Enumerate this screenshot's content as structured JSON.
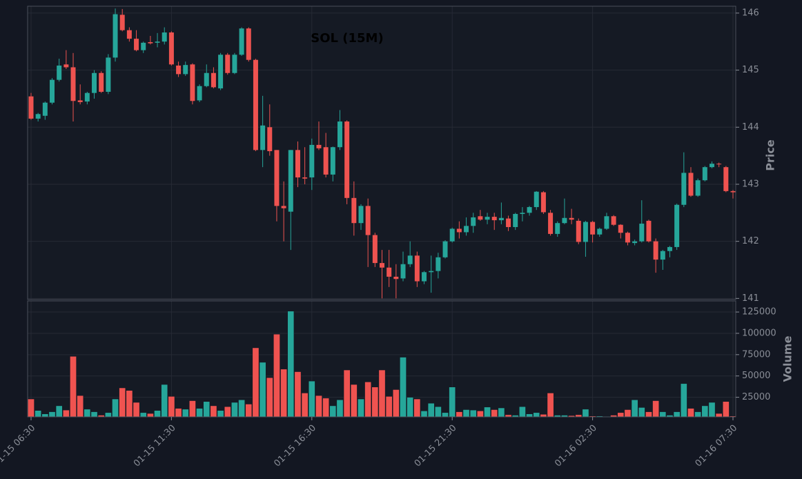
{
  "chart_data": {
    "type": "candlestick",
    "title": "SOL (15M)",
    "y_label": "Price",
    "up_color": "#26a69a",
    "down_color": "#ef5350",
    "grid": true,
    "categories": [
      "01-15 06:30",
      null,
      null,
      null,
      null,
      null,
      null,
      null,
      null,
      null,
      null,
      null,
      null,
      null,
      null,
      null,
      null,
      null,
      null,
      null,
      "01-15 11:30",
      null,
      null,
      null,
      null,
      null,
      null,
      null,
      null,
      null,
      null,
      null,
      null,
      null,
      null,
      null,
      null,
      null,
      null,
      null,
      "01-15 16:30",
      null,
      null,
      null,
      null,
      null,
      null,
      null,
      null,
      null,
      null,
      null,
      null,
      null,
      null,
      null,
      null,
      null,
      null,
      null,
      "01-15 21:30",
      null,
      null,
      null,
      null,
      null,
      null,
      null,
      null,
      null,
      null,
      null,
      null,
      null,
      null,
      null,
      null,
      null,
      null,
      null,
      "01-16 02:30",
      null,
      null,
      null,
      null,
      null,
      null,
      null,
      null,
      null,
      null,
      null,
      null,
      null,
      null,
      null,
      null,
      null,
      null,
      null,
      "01-16 07:30"
    ],
    "open": [
      144.54,
      144.15,
      144.2,
      144.43,
      144.83,
      145.1,
      145.05,
      144.47,
      144.45,
      144.6,
      144.95,
      144.62,
      145.22,
      145.97,
      145.7,
      145.55,
      145.35,
      145.49,
      145.48,
      145.5,
      145.66,
      145.08,
      144.93,
      145.1,
      144.47,
      144.72,
      144.95,
      144.68,
      145.27,
      144.95,
      145.27,
      145.73,
      145.18,
      143.6,
      144.0,
      143.6,
      142.62,
      142.52,
      143.6,
      143.12,
      143.12,
      143.69,
      143.65,
      143.17,
      143.65,
      144.1,
      142.76,
      142.32,
      142.62,
      142.11,
      141.62,
      141.54,
      141.38,
      141.35,
      141.6,
      141.75,
      141.3,
      141.46,
      141.48,
      141.72,
      142.0,
      142.22,
      142.16,
      142.27,
      142.44,
      142.38,
      142.43,
      142.37,
      142.4,
      142.25,
      142.48,
      142.5,
      142.6,
      142.86,
      142.5,
      142.13,
      142.32,
      142.41,
      142.36,
      141.99,
      142.34,
      142.12,
      142.22,
      142.44,
      142.29,
      142.15,
      141.97,
      142.0,
      142.36,
      142.0,
      141.68,
      141.83,
      141.9,
      142.64,
      143.2,
      142.8,
      143.07,
      143.3,
      143.36,
      143.3,
      142.88
    ],
    "high": [
      144.6,
      144.25,
      144.45,
      144.86,
      145.2,
      145.35,
      145.3,
      144.75,
      144.62,
      145.0,
      144.98,
      145.28,
      146.08,
      146.07,
      145.75,
      145.7,
      145.5,
      145.6,
      145.65,
      145.75,
      145.68,
      145.15,
      145.15,
      145.12,
      144.75,
      145.1,
      145.05,
      145.3,
      145.3,
      145.3,
      145.75,
      145.75,
      145.2,
      144.55,
      144.4,
      143.6,
      143.05,
      143.6,
      143.75,
      143.65,
      143.8,
      144.1,
      143.9,
      143.66,
      144.3,
      144.12,
      143.05,
      142.65,
      142.75,
      142.15,
      141.85,
      141.85,
      141.6,
      141.82,
      142.0,
      141.82,
      141.48,
      141.75,
      141.8,
      142.02,
      142.24,
      142.35,
      142.42,
      142.5,
      142.55,
      142.5,
      142.5,
      142.68,
      142.45,
      142.5,
      142.6,
      142.62,
      142.88,
      142.88,
      142.55,
      142.35,
      142.75,
      142.57,
      142.4,
      142.36,
      142.36,
      142.24,
      142.5,
      142.46,
      142.3,
      142.17,
      142.03,
      142.72,
      142.38,
      142.05,
      141.85,
      141.92,
      142.66,
      143.56,
      143.3,
      143.1,
      143.32,
      143.4,
      143.38,
      143.32,
      142.9
    ],
    "low": [
      144.13,
      144.1,
      144.13,
      144.4,
      144.8,
      145.02,
      144.1,
      144.4,
      144.4,
      144.5,
      144.6,
      144.58,
      145.15,
      145.68,
      145.5,
      145.33,
      145.3,
      145.45,
      145.4,
      145.45,
      145.08,
      144.88,
      144.9,
      144.4,
      144.44,
      144.7,
      144.68,
      144.65,
      144.92,
      144.93,
      145.25,
      145.15,
      143.58,
      143.3,
      143.5,
      142.35,
      142.0,
      141.85,
      142.95,
      143.0,
      142.9,
      143.6,
      143.12,
      143.05,
      143.6,
      142.65,
      142.1,
      142.2,
      141.55,
      141.55,
      141.0,
      141.2,
      141.0,
      141.3,
      141.55,
      141.2,
      141.25,
      141.1,
      141.35,
      141.7,
      141.98,
      142.05,
      142.1,
      142.15,
      142.36,
      142.3,
      142.2,
      142.3,
      142.18,
      142.2,
      142.35,
      142.45,
      142.55,
      142.48,
      142.1,
      142.08,
      142.3,
      142.3,
      141.95,
      141.73,
      141.98,
      142.08,
      142.2,
      142.27,
      142.05,
      141.93,
      141.93,
      141.98,
      141.98,
      141.45,
      141.5,
      141.72,
      141.85,
      142.6,
      142.78,
      142.78,
      143.05,
      143.28,
      143.3,
      142.86,
      142.75
    ],
    "close": [
      144.15,
      144.23,
      144.43,
      144.83,
      145.08,
      145.05,
      144.46,
      144.44,
      144.6,
      144.95,
      144.62,
      145.22,
      145.98,
      145.7,
      145.55,
      145.35,
      145.48,
      145.47,
      145.5,
      145.66,
      145.1,
      144.93,
      145.09,
      144.46,
      144.72,
      144.95,
      144.7,
      145.27,
      144.95,
      145.27,
      145.73,
      145.18,
      143.6,
      144.03,
      143.58,
      142.62,
      142.58,
      143.6,
      143.12,
      143.1,
      143.69,
      143.63,
      143.17,
      143.65,
      144.1,
      142.76,
      142.32,
      142.62,
      142.11,
      141.62,
      141.54,
      141.38,
      141.34,
      141.6,
      141.75,
      141.3,
      141.46,
      141.48,
      141.72,
      142.0,
      142.22,
      142.16,
      142.27,
      142.42,
      142.38,
      142.43,
      142.37,
      142.41,
      142.25,
      142.48,
      142.5,
      142.6,
      142.87,
      142.51,
      142.13,
      142.32,
      142.41,
      142.38,
      141.99,
      142.34,
      142.12,
      142.22,
      142.44,
      142.29,
      142.15,
      141.98,
      142.0,
      142.31,
      142.0,
      141.68,
      141.83,
      141.9,
      142.64,
      143.2,
      142.8,
      143.07,
      143.3,
      143.36,
      143.35,
      142.88,
      142.86
    ],
    "ylim": [
      140.98,
      146.12
    ],
    "yticks": [
      141,
      142,
      143,
      144,
      145,
      146
    ],
    "volume": {
      "y_label": "Volume",
      "ylim": [
        2000,
        138000
      ],
      "yticks": [
        25000,
        50000,
        75000,
        100000,
        125000
      ],
      "values": [
        23000,
        9500,
        5500,
        8000,
        15000,
        10000,
        73000,
        27000,
        11000,
        8000,
        4000,
        7000,
        23000,
        36000,
        33000,
        19000,
        7000,
        6000,
        9500,
        40000,
        26000,
        12000,
        11000,
        21000,
        12000,
        20000,
        15000,
        9500,
        14000,
        19000,
        22000,
        17000,
        83000,
        66000,
        48000,
        99000,
        58000,
        126000,
        55000,
        30000,
        44000,
        27000,
        24000,
        15000,
        22000,
        57000,
        40000,
        23000,
        43000,
        37000,
        57000,
        26000,
        34000,
        72000,
        25000,
        23000,
        9000,
        18000,
        14000,
        7000,
        37000,
        8000,
        10500,
        10000,
        9000,
        13500,
        10500,
        12500,
        4500,
        4000,
        14000,
        5500,
        7000,
        5000,
        30000,
        4000,
        4000,
        3500,
        4500,
        11000,
        3000,
        3000,
        2500,
        4000,
        7000,
        10500,
        22000,
        13000,
        8000,
        21000,
        8000,
        4000,
        8000,
        41000,
        12000,
        8000,
        15000,
        19000,
        6000,
        20000,
        3000
      ]
    }
  }
}
